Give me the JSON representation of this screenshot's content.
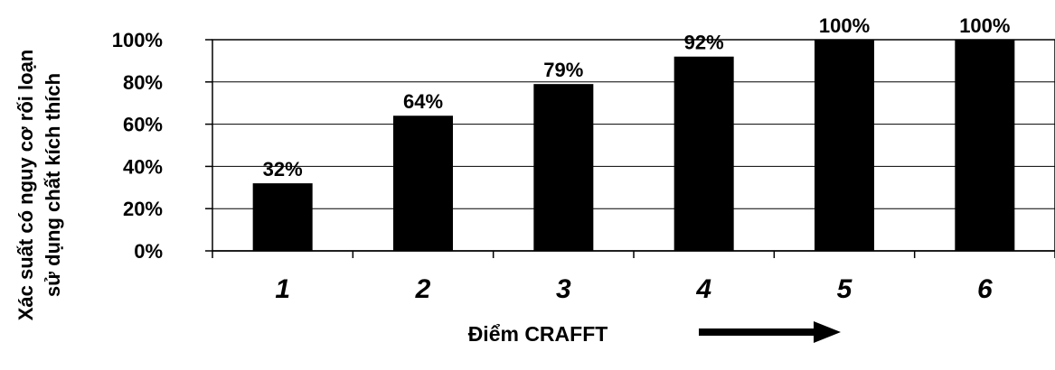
{
  "chart_data": {
    "type": "bar",
    "categories": [
      "1",
      "2",
      "3",
      "4",
      "5",
      "6"
    ],
    "values": [
      32,
      64,
      79,
      92,
      100,
      100
    ],
    "data_labels": [
      "32%",
      "64%",
      "79%",
      "92%",
      "100%",
      "100%"
    ],
    "ylim": [
      0,
      100
    ],
    "yticks": [
      0,
      20,
      40,
      60,
      80,
      100
    ],
    "ytick_labels": [
      "0%",
      "20%",
      "40%",
      "60%",
      "80%",
      "100%"
    ],
    "xlabel": "Điểm CRAFFT",
    "ylabel_lines": [
      "Xác suất có nguy cơ rối loạn",
      "sử dụng chất kích thích"
    ],
    "grid": true,
    "bar_color": "#000000",
    "annotation": "arrow-right-icon"
  }
}
